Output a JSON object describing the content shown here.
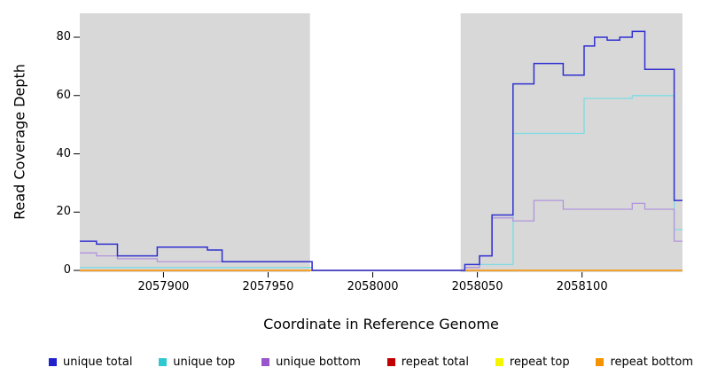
{
  "chart_data": {
    "type": "line",
    "style": "step",
    "title": "",
    "xlabel": "Coordinate in Reference Genome",
    "ylabel": "Read Coverage Depth",
    "xlim": [
      2057860,
      2058148
    ],
    "ylim": [
      0,
      88
    ],
    "xticks": [
      2057900,
      2057950,
      2058000,
      2058050,
      2058100
    ],
    "yticks": [
      0,
      20,
      40,
      60,
      80
    ],
    "grid": false,
    "background_color": "#ffffff",
    "shaded_regions": [
      {
        "x0": 2057860,
        "x1": 2057970,
        "color": "#d8d8d8"
      },
      {
        "x0": 2058042,
        "x1": 2058148,
        "color": "#d8d8d8"
      }
    ],
    "series": [
      {
        "name": "repeat total",
        "color": "#c00000",
        "width": 1.2,
        "points": [
          [
            2057860,
            0
          ],
          [
            2058148,
            0
          ]
        ]
      },
      {
        "name": "repeat top",
        "color": "#f5f500",
        "width": 1.2,
        "points": [
          [
            2057860,
            0
          ],
          [
            2058148,
            0
          ]
        ]
      },
      {
        "name": "repeat bottom",
        "color": "#ff9500",
        "width": 1.3,
        "points": [
          [
            2057860,
            0
          ],
          [
            2058148,
            0
          ]
        ]
      },
      {
        "name": "unique top",
        "color": "#7ddce2",
        "width": 1.3,
        "points": [
          [
            2057860,
            1
          ],
          [
            2057971,
            0
          ],
          [
            2058044,
            2
          ],
          [
            2058067,
            47
          ],
          [
            2058101,
            59
          ],
          [
            2058124,
            60
          ],
          [
            2058144,
            14
          ]
        ]
      },
      {
        "name": "unique bottom",
        "color": "#b294dd",
        "width": 1.3,
        "points": [
          [
            2057860,
            6
          ],
          [
            2057868,
            5
          ],
          [
            2057878,
            4
          ],
          [
            2057897,
            3
          ],
          [
            2057971,
            0
          ],
          [
            2058044,
            1
          ],
          [
            2058051,
            5
          ],
          [
            2058057,
            18
          ],
          [
            2058067,
            17
          ],
          [
            2058077,
            24
          ],
          [
            2058091,
            21
          ],
          [
            2058118,
            21
          ],
          [
            2058124,
            23
          ],
          [
            2058130,
            21
          ],
          [
            2058144,
            10
          ]
        ]
      },
      {
        "name": "unique total",
        "color": "#3030d0",
        "width": 1.5,
        "points": [
          [
            2057860,
            10
          ],
          [
            2057868,
            9
          ],
          [
            2057878,
            5
          ],
          [
            2057897,
            8
          ],
          [
            2057921,
            7
          ],
          [
            2057928,
            3
          ],
          [
            2057971,
            0
          ],
          [
            2058044,
            2
          ],
          [
            2058051,
            5
          ],
          [
            2058057,
            19
          ],
          [
            2058067,
            64
          ],
          [
            2058077,
            71
          ],
          [
            2058091,
            67
          ],
          [
            2058101,
            77
          ],
          [
            2058106,
            80
          ],
          [
            2058112,
            79
          ],
          [
            2058118,
            80
          ],
          [
            2058124,
            82
          ],
          [
            2058130,
            69
          ],
          [
            2058144,
            24
          ]
        ]
      }
    ],
    "legend": [
      {
        "label": "unique total",
        "color": "#2020cc"
      },
      {
        "label": "unique top",
        "color": "#30c8d0"
      },
      {
        "label": "unique bottom",
        "color": "#9955cc"
      },
      {
        "label": "repeat total",
        "color": "#c00000"
      },
      {
        "label": "repeat top",
        "color": "#f5f500"
      },
      {
        "label": "repeat bottom",
        "color": "#f59300"
      }
    ],
    "legend_position": "bottom"
  }
}
